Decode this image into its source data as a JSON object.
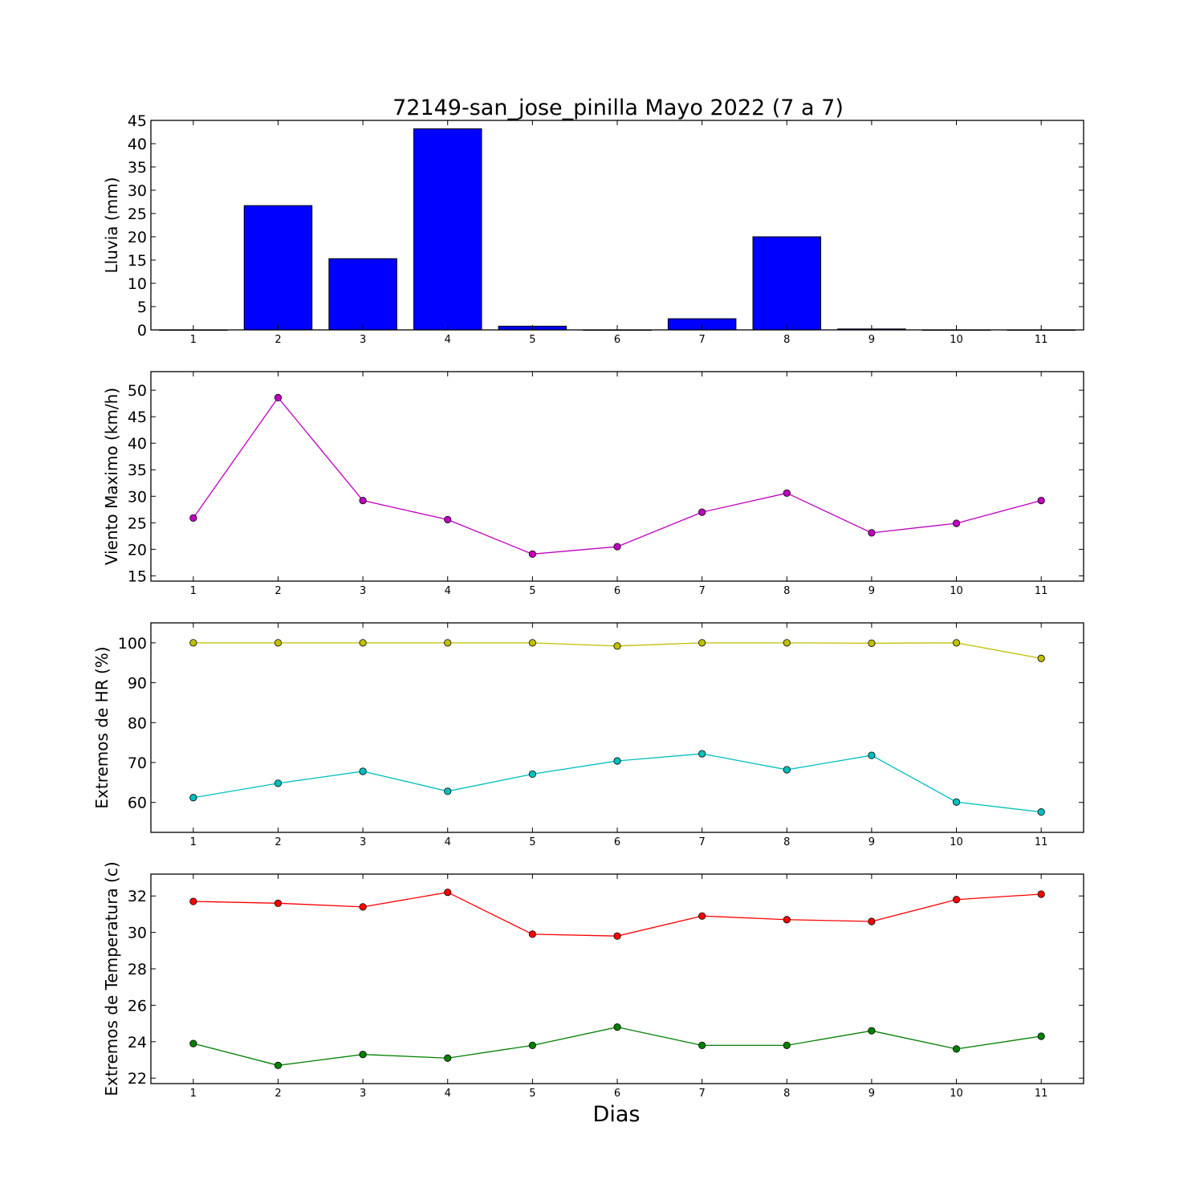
{
  "title": "72149-san_jose_pinilla Mayo 2022  (7 a 7)",
  "xlabel": "Dias",
  "chart_data": [
    {
      "type": "bar",
      "ylabel": "Lluvia (mm)",
      "categories": [
        1,
        2,
        3,
        4,
        5,
        6,
        7,
        8,
        9,
        10,
        11
      ],
      "ylim": [
        0,
        45
      ],
      "yticks": [
        0,
        5,
        10,
        15,
        20,
        25,
        30,
        35,
        40,
        45
      ],
      "series": [
        {
          "color": "#0000ff",
          "values": [
            0,
            26.7,
            15.3,
            43.2,
            0.8,
            0,
            2.4,
            20.0,
            0.2,
            0,
            0
          ]
        }
      ]
    },
    {
      "type": "line",
      "ylabel": "Viento Maximo (km/h)",
      "x": [
        1,
        2,
        3,
        4,
        5,
        6,
        7,
        8,
        9,
        10,
        11
      ],
      "ylim": [
        14,
        53.5
      ],
      "yticks": [
        15,
        20,
        25,
        30,
        35,
        40,
        45,
        50
      ],
      "series": [
        {
          "color": "#bf00bf",
          "values": [
            25.9,
            48.6,
            29.2,
            25.6,
            19.1,
            20.5,
            27.0,
            30.6,
            23.1,
            24.9,
            29.2
          ]
        }
      ]
    },
    {
      "type": "line",
      "ylabel": "Extremos de HR (%)",
      "x": [
        1,
        2,
        3,
        4,
        5,
        6,
        7,
        8,
        9,
        10,
        11
      ],
      "ylim": [
        52.5,
        105
      ],
      "yticks": [
        60,
        70,
        80,
        90,
        100
      ],
      "series": [
        {
          "color": "#bfbf00",
          "values": [
            100,
            100,
            100,
            100,
            100,
            99.2,
            100,
            100,
            99.9,
            100,
            96.1
          ]
        },
        {
          "color": "#00bfbf",
          "values": [
            61.2,
            64.8,
            67.8,
            62.8,
            67.1,
            70.4,
            72.2,
            68.2,
            71.8,
            60.1,
            57.6
          ]
        }
      ]
    },
    {
      "type": "line",
      "ylabel": "Extremos de Temperatura (c)",
      "x": [
        1,
        2,
        3,
        4,
        5,
        6,
        7,
        8,
        9,
        10,
        11
      ],
      "ylim": [
        21.7,
        33.2
      ],
      "yticks": [
        22,
        24,
        26,
        28,
        30,
        32
      ],
      "series": [
        {
          "color": "#ff0000",
          "values": [
            31.7,
            31.6,
            31.4,
            32.2,
            29.9,
            29.8,
            30.9,
            30.7,
            30.6,
            31.8,
            32.1
          ]
        },
        {
          "color": "#008000",
          "values": [
            23.9,
            22.7,
            23.3,
            23.1,
            23.8,
            24.8,
            23.8,
            23.8,
            24.6,
            23.6,
            24.3
          ]
        }
      ]
    }
  ]
}
